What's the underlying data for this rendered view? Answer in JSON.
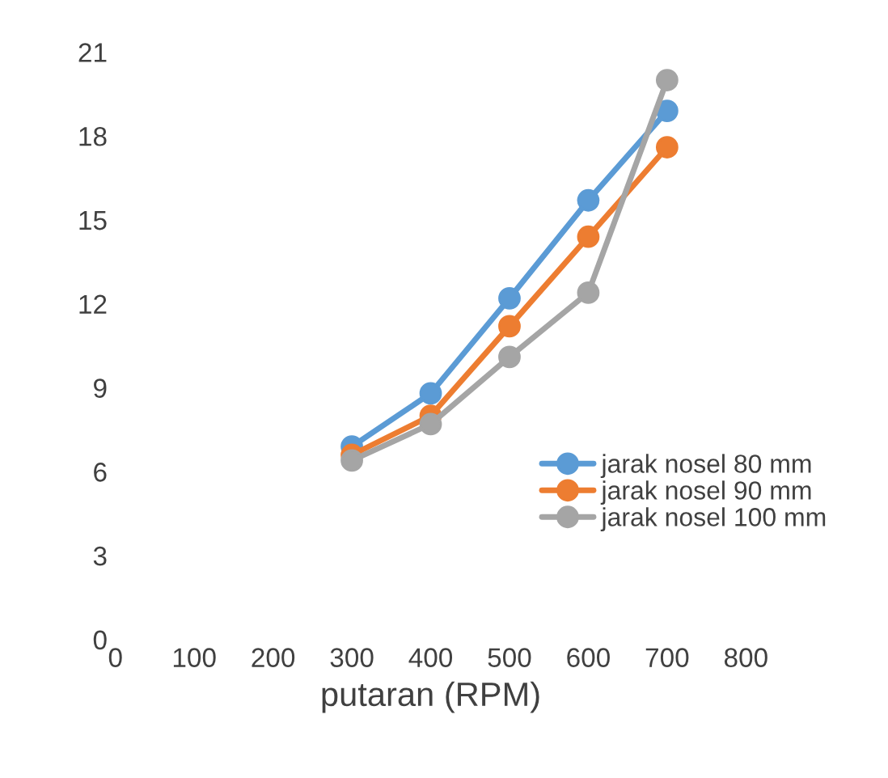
{
  "chart_data": {
    "type": "line",
    "xlabel": "putaran (RPM)",
    "x": [
      300,
      400,
      500,
      600,
      700
    ],
    "series": [
      {
        "name": "jarak nosel 80 mm",
        "color": "#5b9bd5",
        "values": [
          6.9,
          8.8,
          12.2,
          15.7,
          18.9
        ]
      },
      {
        "name": "jarak nosel 90 mm",
        "color": "#ed7d31",
        "values": [
          6.6,
          8.0,
          11.2,
          14.4,
          17.6
        ]
      },
      {
        "name": "jarak nosel 100 mm",
        "color": "#a5a5a5",
        "values": [
          6.4,
          7.7,
          10.1,
          12.4,
          20.0
        ]
      }
    ],
    "xlim": [
      0,
      800
    ],
    "xticks": [
      0,
      100,
      200,
      300,
      400,
      500,
      600,
      700,
      800
    ],
    "ylim": [
      0,
      21
    ],
    "yticks": [
      0,
      3,
      6,
      9,
      12,
      15,
      18,
      21
    ],
    "grid": false,
    "legend": "right",
    "marker": "circle",
    "line_style": "solid"
  }
}
